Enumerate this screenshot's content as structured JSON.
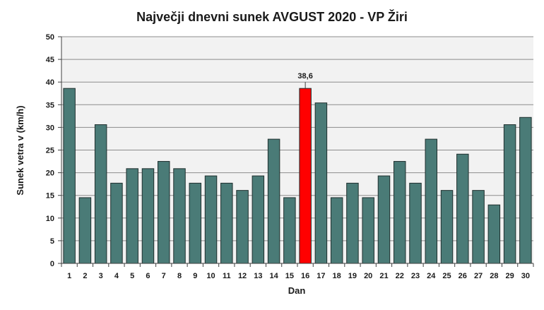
{
  "chart_data": {
    "type": "bar",
    "title": "Največji dnevni sunek AVGUST 2020 - VP Žiri",
    "xlabel": "Dan",
    "ylabel": "Sunek vetra v (km/h)",
    "ylim": [
      0,
      50
    ],
    "yticks": [
      0,
      5,
      10,
      15,
      20,
      25,
      30,
      35,
      40,
      45,
      50
    ],
    "categories": [
      "1",
      "2",
      "3",
      "4",
      "5",
      "6",
      "7",
      "8",
      "9",
      "10",
      "11",
      "12",
      "13",
      "14",
      "15",
      "16",
      "17",
      "18",
      "19",
      "20",
      "21",
      "22",
      "23",
      "24",
      "25",
      "26",
      "27",
      "28",
      "29",
      "30"
    ],
    "values": [
      38.6,
      14.5,
      30.6,
      17.7,
      20.9,
      20.9,
      22.5,
      20.9,
      17.7,
      19.3,
      17.7,
      16.1,
      19.3,
      27.4,
      14.5,
      38.6,
      35.4,
      14.5,
      17.7,
      14.5,
      19.3,
      22.5,
      17.7,
      27.4,
      16.1,
      24.1,
      16.1,
      12.9,
      30.6,
      32.2
    ],
    "highlight": {
      "index": 15,
      "label": "38,6",
      "color": "#ff0000"
    },
    "bar_color": "#4a7b77",
    "grid": true,
    "plot_background": "#f2f2f2"
  }
}
